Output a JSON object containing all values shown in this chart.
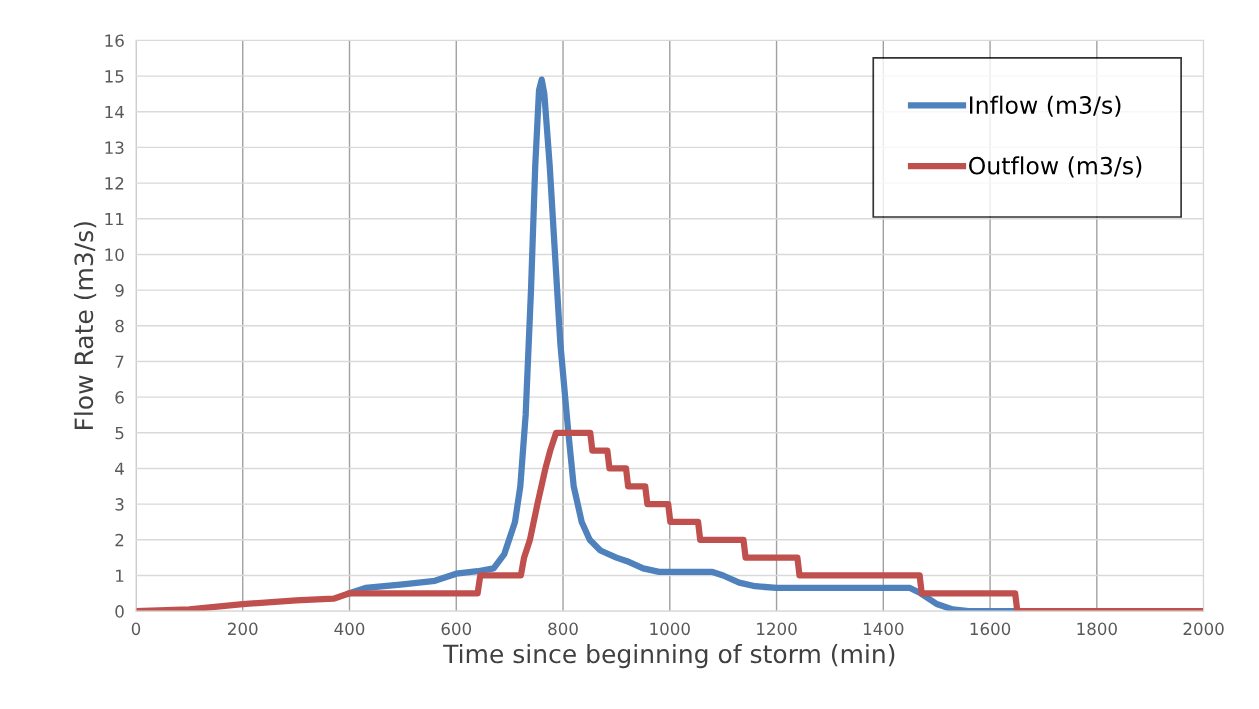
{
  "chart_data": {
    "type": "line",
    "xlabel": "Time since beginning of storm (min)",
    "ylabel": "Flow Rate (m3/s)",
    "xlim": [
      0,
      2000
    ],
    "xticks": [
      0,
      200,
      400,
      600,
      800,
      1000,
      1200,
      1400,
      1600,
      1800,
      2000
    ],
    "ylim": [
      0,
      16
    ],
    "yticks": [
      0,
      1,
      2,
      3,
      4,
      5,
      6,
      7,
      8,
      9,
      10,
      11,
      12,
      13,
      14,
      15,
      16
    ],
    "grid": true,
    "legend": "top right",
    "marker": "none",
    "line_style": "solid",
    "series": [
      {
        "name": "Inflow (m3/s)",
        "color": "#4f81bd",
        "x": [
          400,
          430,
          500,
          560,
          600,
          640,
          670,
          690,
          710,
          720,
          730,
          740,
          748,
          755,
          760,
          765,
          775,
          785,
          795,
          810,
          820,
          835,
          850,
          870,
          900,
          920,
          950,
          980,
          1000,
          1080,
          1100,
          1130,
          1160,
          1200,
          1450,
          1470,
          1500,
          1530,
          1560,
          1650
        ],
        "values": [
          0.5,
          0.65,
          0.75,
          0.85,
          1.05,
          1.12,
          1.2,
          1.6,
          2.5,
          3.5,
          5.5,
          9,
          12.5,
          14.6,
          14.9,
          14.5,
          12.5,
          10,
          7.5,
          5,
          3.5,
          2.5,
          2.0,
          1.7,
          1.5,
          1.4,
          1.2,
          1.1,
          1.1,
          1.1,
          1.0,
          0.8,
          0.7,
          0.65,
          0.65,
          0.5,
          0.2,
          0.05,
          0,
          0
        ]
      },
      {
        "name": "Outflow (m3/s)",
        "color": "#c0504d",
        "x": [
          0,
          100,
          200,
          300,
          370,
          400,
          640,
          645,
          721,
          727,
          738,
          752,
          767,
          776,
          787,
          851,
          855,
          883,
          887,
          918,
          922,
          954,
          958,
          997,
          1001,
          1053,
          1057,
          1138,
          1142,
          1239,
          1243,
          1468,
          1472,
          1647,
          1651,
          2000
        ],
        "values": [
          0,
          0.05,
          0.2,
          0.3,
          0.35,
          0.5,
          0.5,
          1.0,
          1.0,
          1.5,
          2.0,
          3.0,
          4.0,
          4.5,
          5.0,
          5.0,
          4.5,
          4.5,
          4.0,
          4.0,
          3.5,
          3.5,
          3.0,
          3.0,
          2.5,
          2.5,
          2.0,
          2.0,
          1.5,
          1.5,
          1.0,
          1.0,
          0.5,
          0.5,
          0,
          0
        ]
      }
    ]
  }
}
